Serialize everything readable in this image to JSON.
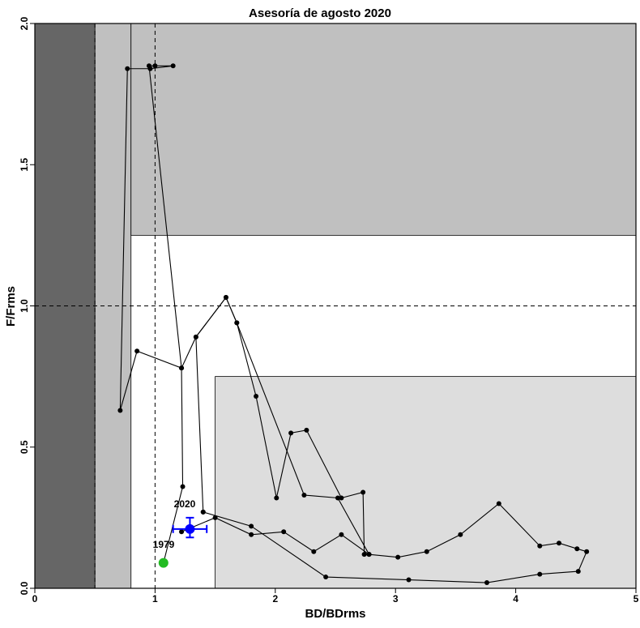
{
  "chart_data": {
    "type": "scatter",
    "title": "Asesoría de agosto 2020",
    "xlabel": "BD/BDrms",
    "ylabel": "F/Frms",
    "xlim": [
      0,
      5
    ],
    "ylim": [
      0,
      2
    ],
    "xticks": [
      "0",
      "1",
      "2",
      "3",
      "4",
      "5"
    ],
    "yticks": [
      "0.0",
      "0.5",
      "1.0",
      "1.5",
      "2.0"
    ],
    "colors": {
      "zone_dark": "#666666",
      "zone_mid": "#c0c0c0",
      "zone_light": "#dddddd",
      "trajectory": "#000000",
      "current_point": "#0000ff",
      "start_point": "#22bb22"
    },
    "zones": [
      {
        "name": "dark",
        "x": [
          0,
          0.5
        ],
        "y": [
          0,
          2
        ]
      },
      {
        "name": "mid-left",
        "x": [
          0.5,
          0.8
        ],
        "y": [
          0,
          2
        ]
      },
      {
        "name": "mid-top",
        "x": [
          0.8,
          5
        ],
        "y": [
          1.25,
          2
        ]
      },
      {
        "name": "light",
        "x": [
          1.5,
          5
        ],
        "y": [
          0,
          0.75
        ]
      }
    ],
    "reference_lines": {
      "vertical": [
        0.5,
        1.0
      ],
      "horizontal": [
        1.0
      ]
    },
    "trajectory": {
      "x": [
        1.07,
        1.23,
        1.22,
        0.95,
        1.0,
        1.15,
        0.96,
        0.77,
        0.71,
        0.85,
        1.22,
        1.34,
        1.59,
        1.68,
        1.84,
        2.01,
        2.13,
        2.26,
        2.55,
        2.73,
        2.74,
        2.78,
        3.02,
        3.26,
        3.54,
        3.86,
        4.2,
        4.36,
        4.51,
        4.59,
        4.52,
        4.2,
        3.76,
        3.11,
        2.42,
        1.8,
        1.4
      ],
      "y": [
        0.09,
        0.36,
        0.78,
        1.85,
        1.85,
        1.85,
        1.84,
        1.84,
        0.63,
        0.84,
        0.78,
        0.89,
        1.03,
        0.94,
        0.68,
        0.32,
        0.55,
        0.56,
        0.32,
        0.34,
        0.12,
        0.12,
        0.11,
        0.13,
        0.19,
        0.3,
        0.15,
        0.16,
        0.14,
        0.13,
        0.06,
        0.05,
        0.02,
        0.03,
        0.04,
        0.22,
        0.27
      ]
    },
    "trajectory_b": {
      "x": [
        1.4,
        1.34,
        1.59,
        1.68,
        2.24,
        2.52,
        2.78,
        2.55,
        2.32,
        2.07,
        1.8,
        1.5,
        1.22
      ],
      "y": [
        0.27,
        0.89,
        1.03,
        0.94,
        0.33,
        0.32,
        0.12,
        0.19,
        0.13,
        0.2,
        0.19,
        0.25,
        0.2
      ]
    },
    "start_point": {
      "x": 1.07,
      "y": 0.09,
      "label": "1979"
    },
    "current_point": {
      "x": 1.29,
      "y": 0.21,
      "label": "2020",
      "x_err": [
        1.15,
        1.43
      ],
      "y_err": [
        0.18,
        0.25
      ]
    }
  }
}
